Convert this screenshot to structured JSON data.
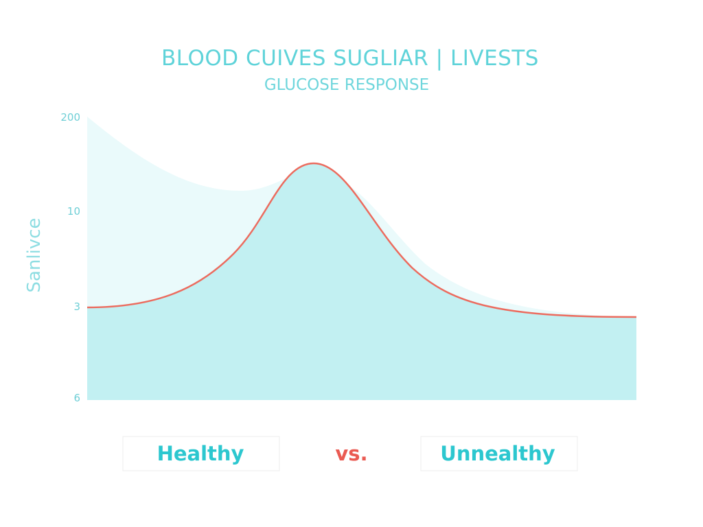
{
  "title": "BLOOD CUIVES SUGLIAR | LIVESTS",
  "subtitle": "GLUCOSE RESPONSE",
  "y_axis_label": "Sanlivce",
  "y_labels": [
    "200",
    "10",
    "3",
    "6"
  ],
  "legend": {
    "left": "Healthy",
    "middle": "vs.",
    "right": "Unnealthy"
  }
}
